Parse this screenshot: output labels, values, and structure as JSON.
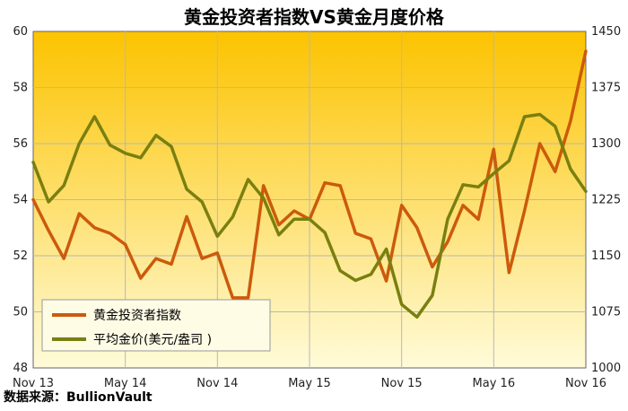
{
  "chart_data": {
    "type": "line",
    "title": "黄金投资者指数VS黄金月度价格",
    "source": "数据来源：BullionVault",
    "x_tick_labels": [
      "Nov 13",
      "May 14",
      "Nov 14",
      "May 15",
      "Nov 15",
      "May 16",
      "Nov 16"
    ],
    "y_left": {
      "range": [
        48,
        60
      ],
      "ticks": [
        "48",
        "50",
        "52",
        "54",
        "56",
        "58",
        "60"
      ]
    },
    "y_right": {
      "range": [
        1000,
        1450
      ],
      "ticks": [
        "1000",
        "1075",
        "1150",
        "1225",
        "1300",
        "1375",
        "1450"
      ]
    },
    "grid": true,
    "legend": "bottom-left",
    "series": [
      {
        "name": "黄金投资者指数",
        "axis": "left",
        "color": "#cc5a0c",
        "values": [
          54.0,
          52.9,
          51.9,
          53.5,
          53.0,
          52.8,
          52.4,
          51.2,
          51.9,
          51.7,
          53.4,
          51.9,
          52.1,
          50.5,
          50.5,
          54.5,
          53.1,
          53.6,
          53.3,
          54.6,
          54.5,
          52.8,
          52.6,
          51.1,
          53.8,
          53.0,
          51.6,
          52.5,
          53.8,
          53.3,
          55.8,
          51.4,
          53.6,
          56.0,
          55.0,
          56.8,
          59.3
        ]
      },
      {
        "name": "平均金价(美元/盎司 )",
        "axis": "right",
        "color": "#7a7f10",
        "values": [
          1275,
          1222,
          1244,
          1300,
          1336,
          1298,
          1287,
          1281,
          1311,
          1296,
          1239,
          1222,
          1176,
          1202,
          1252,
          1227,
          1178,
          1199,
          1199,
          1181,
          1130,
          1117,
          1125,
          1159,
          1085,
          1068,
          1097,
          1199,
          1245,
          1242,
          1260,
          1277,
          1336,
          1339,
          1323,
          1266,
          1236
        ]
      }
    ]
  }
}
